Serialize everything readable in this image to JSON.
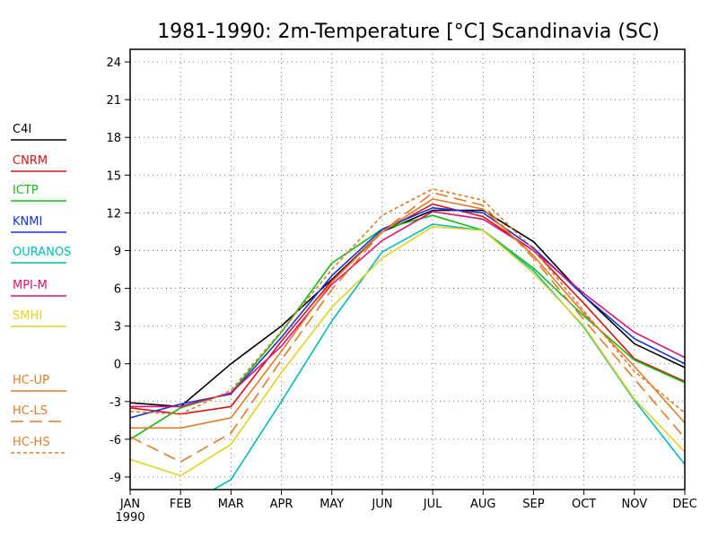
{
  "chart_data": {
    "type": "line",
    "title": "1981-1990: 2m-Temperature [°C] Scandinavia (SC)",
    "xlabel": "",
    "ylabel": "",
    "categories": [
      "JAN",
      "FEB",
      "MAR",
      "APR",
      "MAY",
      "JUN",
      "JUL",
      "AUG",
      "SEP",
      "OCT",
      "NOV",
      "DEC"
    ],
    "first_tick_sublabel": "1990",
    "ylim": [
      -10,
      25
    ],
    "yticks": [
      -9,
      -6,
      -3,
      0,
      3,
      6,
      9,
      12,
      15,
      18,
      21,
      24
    ],
    "grid": true,
    "legend_position": "left",
    "series": [
      {
        "name": "C4I",
        "color": "#000000",
        "dash": "solid",
        "values": [
          -3.1,
          -3.4,
          0.0,
          3.0,
          6.7,
          10.5,
          12.2,
          12.2,
          9.7,
          5.4,
          1.6,
          -0.3
        ]
      },
      {
        "name": "CNRM",
        "color": "#dd1111",
        "dash": "solid",
        "values": [
          -3.5,
          -4.0,
          -3.4,
          1.8,
          6.6,
          10.5,
          12.7,
          11.7,
          9.0,
          4.8,
          0.4,
          -1.4
        ]
      },
      {
        "name": "ICTP",
        "color": "#11bb11",
        "dash": "solid",
        "values": [
          -6.0,
          -3.5,
          -2.3,
          2.5,
          8.0,
          10.7,
          11.8,
          10.6,
          7.6,
          3.8,
          0.3,
          -1.5
        ]
      },
      {
        "name": "KNMI",
        "color": "#1133dd",
        "dash": "solid",
        "values": [
          -4.3,
          -3.2,
          -2.4,
          2.1,
          7.0,
          10.7,
          12.4,
          12.0,
          9.2,
          5.4,
          2.0,
          0.0
        ]
      },
      {
        "name": "OURANOS",
        "color": "#00bbbb",
        "dash": "solid",
        "values": [
          -13.5,
          -11.5,
          -9.2,
          -3.0,
          3.4,
          8.9,
          11.1,
          10.6,
          7.4,
          2.9,
          -2.9,
          -8.0
        ]
      },
      {
        "name": "MPI-M",
        "color": "#dd1177",
        "dash": "solid",
        "values": [
          -3.4,
          -3.4,
          -2.3,
          1.4,
          6.3,
          9.8,
          12.1,
          11.5,
          9.0,
          5.6,
          2.5,
          0.5
        ]
      },
      {
        "name": "SMHI",
        "color": "#e6d020",
        "dash": "solid",
        "values": [
          -7.6,
          -8.9,
          -6.4,
          -0.7,
          4.5,
          8.4,
          10.9,
          10.6,
          7.2,
          3.0,
          -2.8,
          -7.0
        ]
      },
      {
        "name": "HC-UP",
        "color": "#e27a2a",
        "dash": "solid",
        "values": [
          -5.1,
          -5.1,
          -4.3,
          1.0,
          6.5,
          10.5,
          13.1,
          12.3,
          8.6,
          4.0,
          -0.2,
          -4.7
        ]
      },
      {
        "name": "HC-LS",
        "color": "#e27a2a",
        "dash": "long",
        "values": [
          -5.8,
          -7.8,
          -5.5,
          0.3,
          5.9,
          10.5,
          13.6,
          12.6,
          8.4,
          3.5,
          -1.2,
          -5.9
        ]
      },
      {
        "name": "HC-HS",
        "color": "#e27a2a",
        "dash": "short",
        "values": [
          -3.8,
          -4.0,
          -2.1,
          2.6,
          7.5,
          11.8,
          13.9,
          13.0,
          9.1,
          4.2,
          -0.6,
          -3.9
        ]
      }
    ]
  }
}
